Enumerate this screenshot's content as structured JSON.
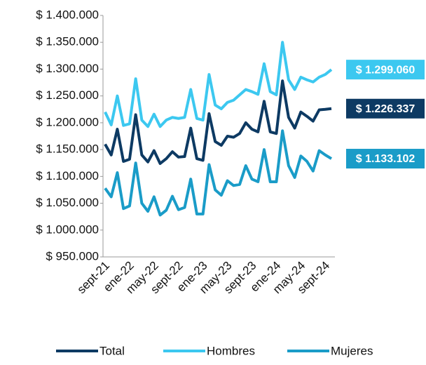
{
  "chart_data": {
    "type": "line",
    "categories": [
      "sept-21",
      null,
      null,
      null,
      "ene-22",
      null,
      null,
      null,
      "may-22",
      null,
      null,
      null,
      "sept-22",
      null,
      null,
      null,
      "ene-23",
      null,
      null,
      null,
      "may-23",
      null,
      null,
      null,
      "sept-23",
      null,
      null,
      null,
      "ene-24",
      null,
      null,
      null,
      "may-24",
      null,
      null,
      null,
      "sept-24",
      null
    ],
    "series": [
      {
        "name": "Total",
        "color": "#0d3a63",
        "values": [
          1160000,
          1140000,
          1188000,
          1128000,
          1132000,
          1215000,
          1140000,
          1127000,
          1148000,
          1124000,
          1133000,
          1146000,
          1136000,
          1137000,
          1190000,
          1133000,
          1130000,
          1217000,
          1165000,
          1158000,
          1175000,
          1173000,
          1180000,
          1200000,
          1188000,
          1183000,
          1240000,
          1183000,
          1180000,
          1278000,
          1210000,
          1190000,
          1220000,
          1212000,
          1203000,
          1224000,
          1225000,
          1226337
        ],
        "value_labels": [
          null,
          null,
          null,
          null,
          null,
          null,
          null,
          null,
          null,
          null,
          null,
          null,
          null,
          null,
          null,
          null,
          null,
          null,
          null,
          null,
          null,
          null,
          null,
          null,
          null,
          null,
          null,
          null,
          null,
          null,
          null,
          null,
          null,
          null,
          null,
          null,
          null,
          "$ 1.226.337"
        ]
      },
      {
        "name": "Hombres",
        "color": "#3cc8f0",
        "values": [
          1220000,
          1196000,
          1250000,
          1195000,
          1198000,
          1282000,
          1205000,
          1193000,
          1216000,
          1193000,
          1205000,
          1210000,
          1208000,
          1210000,
          1262000,
          1208000,
          1205000,
          1290000,
          1233000,
          1226000,
          1238000,
          1242000,
          1252000,
          1262000,
          1258000,
          1253000,
          1310000,
          1258000,
          1252000,
          1350000,
          1280000,
          1262000,
          1285000,
          1280000,
          1276000,
          1285000,
          1290000,
          1299060
        ],
        "value_labels": [
          null,
          null,
          null,
          null,
          null,
          null,
          null,
          null,
          null,
          null,
          null,
          null,
          null,
          null,
          null,
          null,
          null,
          null,
          null,
          null,
          null,
          null,
          null,
          null,
          null,
          null,
          null,
          null,
          null,
          null,
          null,
          null,
          null,
          null,
          null,
          null,
          null,
          "$ 1.299.060"
        ]
      },
      {
        "name": "Mujeres",
        "color": "#1a9cc8",
        "values": [
          1078000,
          1062000,
          1107000,
          1040000,
          1045000,
          1125000,
          1050000,
          1035000,
          1062000,
          1028000,
          1037000,
          1063000,
          1038000,
          1042000,
          1095000,
          1030000,
          1030000,
          1122000,
          1075000,
          1065000,
          1092000,
          1083000,
          1085000,
          1120000,
          1095000,
          1090000,
          1150000,
          1090000,
          1090000,
          1185000,
          1120000,
          1098000,
          1138000,
          1128000,
          1110000,
          1148000,
          1140000,
          1133102
        ],
        "value_labels": [
          null,
          null,
          null,
          null,
          null,
          null,
          null,
          null,
          null,
          null,
          null,
          null,
          null,
          null,
          null,
          null,
          null,
          null,
          null,
          null,
          null,
          null,
          null,
          null,
          null,
          null,
          null,
          null,
          null,
          null,
          null,
          null,
          null,
          null,
          null,
          null,
          null,
          "$ 1.133.102"
        ]
      }
    ],
    "ylim": [
      950000,
      1400000
    ],
    "yticks": [
      {
        "value": 950000,
        "label": "$ 950.000"
      },
      {
        "value": 1000000,
        "label": "$ 1.000.000"
      },
      {
        "value": 1050000,
        "label": "$ 1.050.000"
      },
      {
        "value": 1100000,
        "label": "$ 1.100.000"
      },
      {
        "value": 1150000,
        "label": "$ 1.150.000"
      },
      {
        "value": 1200000,
        "label": "$ 1.200.000"
      },
      {
        "value": 1250000,
        "label": "$ 1.250.000"
      },
      {
        "value": 1300000,
        "label": "$ 1.300.000"
      },
      {
        "value": 1350000,
        "label": "$ 1.350.000"
      },
      {
        "value": 1400000,
        "label": "$ 1.400.000"
      }
    ],
    "legend": "bottom"
  }
}
